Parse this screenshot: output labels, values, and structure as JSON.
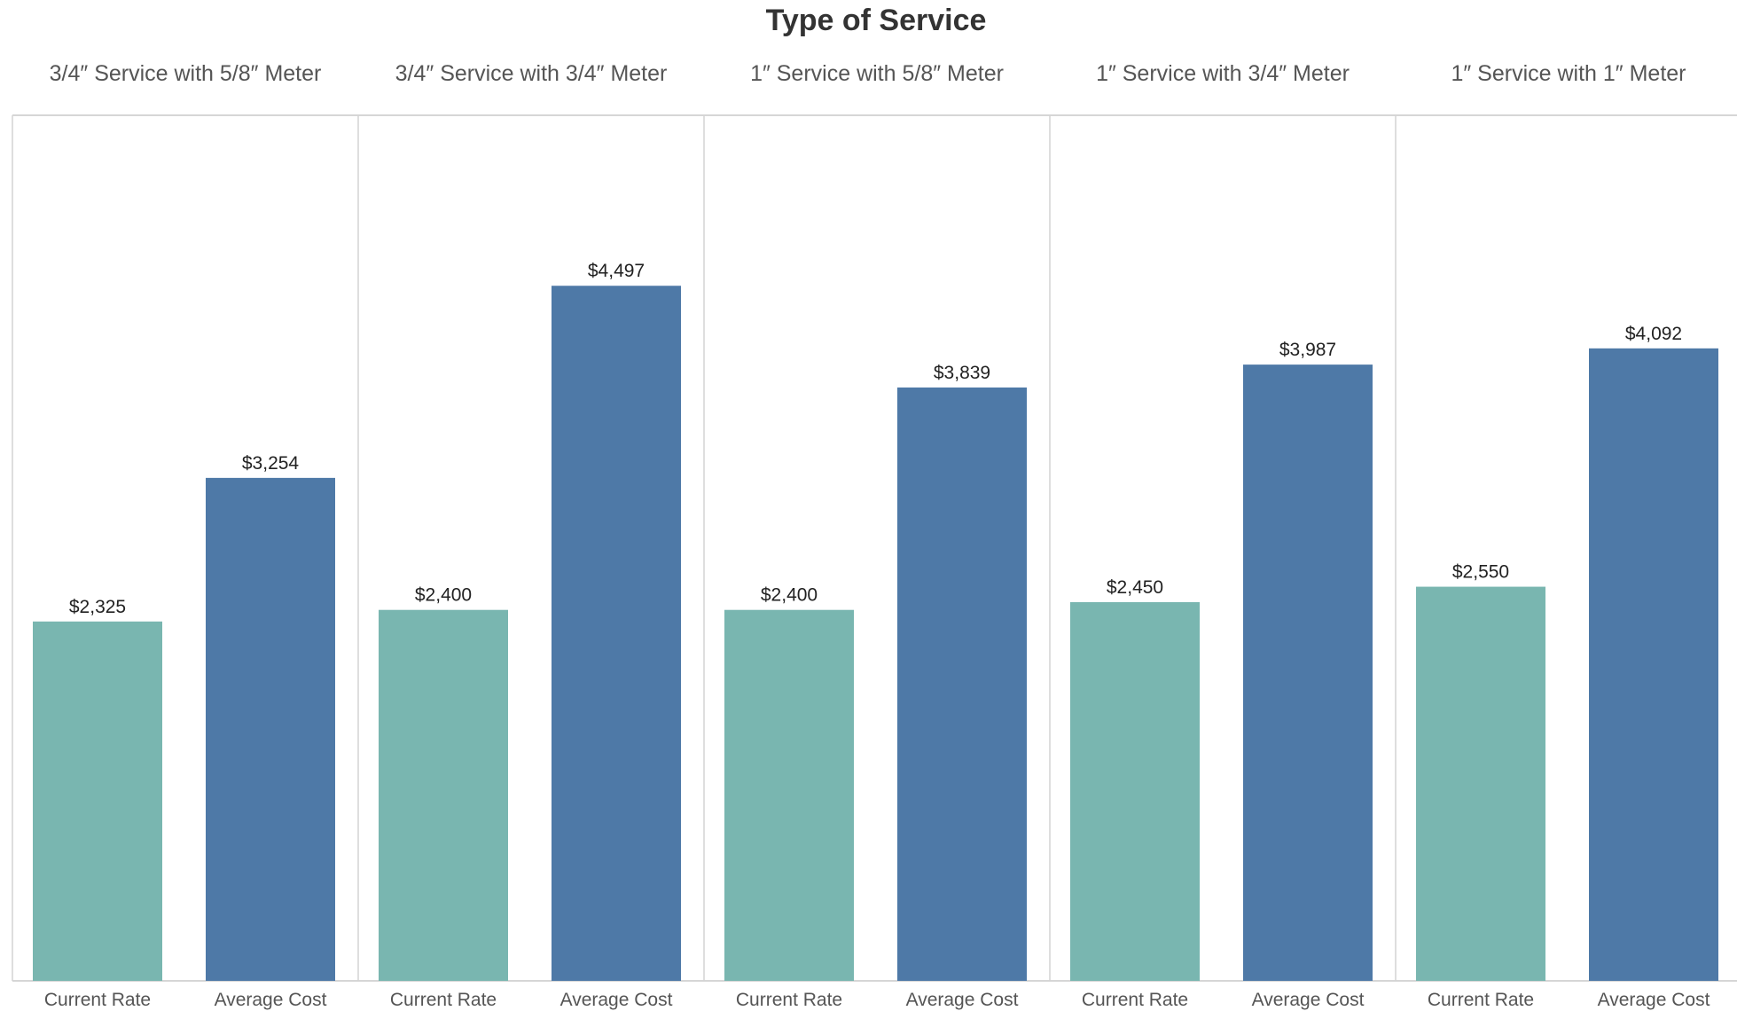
{
  "chart_data": {
    "type": "bar",
    "title": "Type of Service",
    "xlabel": "",
    "ylabel": "",
    "ylim": [
      0,
      5600
    ],
    "grid": false,
    "legend": "none",
    "colors": {
      "Current Rate": "#79b6b0",
      "Average Cost": "#4e79a7"
    },
    "panels": [
      {
        "name": "3/4″ Service with 5/8″ Meter",
        "categories": [
          "Current Rate",
          "Average Cost"
        ],
        "values": [
          2325,
          3254
        ],
        "labels": [
          "$2,325",
          "$3,254"
        ]
      },
      {
        "name": "3/4″ Service with 3/4″ Meter",
        "categories": [
          "Current Rate",
          "Average Cost"
        ],
        "values": [
          2400,
          4497
        ],
        "labels": [
          "$2,400",
          "$4,497"
        ]
      },
      {
        "name": "1″ Service with 5/8″ Meter",
        "categories": [
          "Current Rate",
          "Average Cost"
        ],
        "values": [
          2400,
          3839
        ],
        "labels": [
          "$2,400",
          "$3,839"
        ]
      },
      {
        "name": "1″ Service with 3/4″ Meter",
        "categories": [
          "Current Rate",
          "Average Cost"
        ],
        "values": [
          2450,
          3987
        ],
        "labels": [
          "$2,450",
          "$3,987"
        ]
      },
      {
        "name": "1″ Service with 1″ Meter",
        "categories": [
          "Current Rate",
          "Average Cost"
        ],
        "values": [
          2550,
          4092
        ],
        "labels": [
          "$2,550",
          "$4,092"
        ]
      }
    ]
  }
}
